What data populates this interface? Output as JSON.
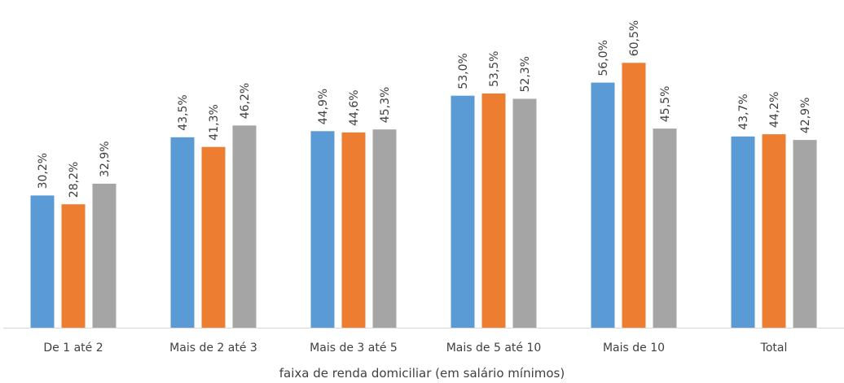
{
  "chart_data": {
    "type": "bar",
    "categories": [
      "De 1 até 2",
      "Mais de 2 até 3",
      "Mais de 3 até 5",
      "Mais de 5 até 10",
      "Mais de 10",
      "Total"
    ],
    "series": [
      {
        "values": [
          30.2,
          43.5,
          44.9,
          53.0,
          56.0,
          43.7
        ],
        "labels": [
          "30,2%",
          "43,5%",
          "44,9%",
          "53,0%",
          "56,0%",
          "43,7%"
        ],
        "color": "#5B9BD5"
      },
      {
        "values": [
          28.2,
          41.3,
          44.6,
          53.5,
          60.5,
          44.2
        ],
        "labels": [
          "28,2%",
          "41,3%",
          "44,6%",
          "53,5%",
          "60,5%",
          "44,2%"
        ],
        "color": "#ED7D31"
      },
      {
        "values": [
          32.9,
          46.2,
          45.3,
          52.3,
          45.5,
          42.9
        ],
        "labels": [
          "32,9%",
          "46,2%",
          "45,3%",
          "52,3%",
          "45,5%",
          "42,9%"
        ],
        "color": "#A5A5A5"
      }
    ],
    "xlabel": "faixa de renda domiciliar (em salário mínimos)",
    "ylabel": "",
    "ylim": [
      0,
      70
    ],
    "grid": false,
    "legend": "none"
  }
}
